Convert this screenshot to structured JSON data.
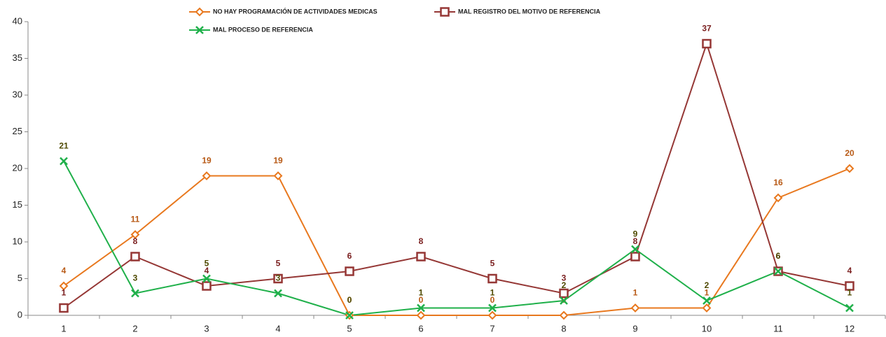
{
  "chart_data": {
    "type": "line",
    "categories": [
      "1",
      "2",
      "3",
      "4",
      "5",
      "6",
      "7",
      "8",
      "9",
      "10",
      "11",
      "12"
    ],
    "series": [
      {
        "name": "NO HAY PROGRAMACIÓN DE ACTIVIDADES MEDICAS",
        "color": "#e8781e",
        "label_color": "#b85a16",
        "marker": "diamond",
        "values": [
          4,
          11,
          19,
          19,
          0,
          0,
          0,
          0,
          1,
          1,
          16,
          20
        ]
      },
      {
        "name": "MAL REGISTRO DEL MOTIVO DE REFERENCIA",
        "color": "#953735",
        "label_color": "#7a1e1e",
        "marker": "square",
        "values": [
          1,
          8,
          4,
          5,
          6,
          8,
          5,
          3,
          8,
          37,
          6,
          4
        ]
      },
      {
        "name": "MAL PROCESO DE REFERENCIA",
        "color": "#1fb04a",
        "label_color": "#4f4a00",
        "marker": "x",
        "values": [
          21,
          3,
          5,
          3,
          0,
          1,
          1,
          2,
          9,
          2,
          6,
          1
        ]
      }
    ],
    "ylim": [
      0,
      40
    ],
    "yticks": [
      0,
      5,
      10,
      15,
      20,
      25,
      30,
      35,
      40
    ],
    "grid": false
  }
}
